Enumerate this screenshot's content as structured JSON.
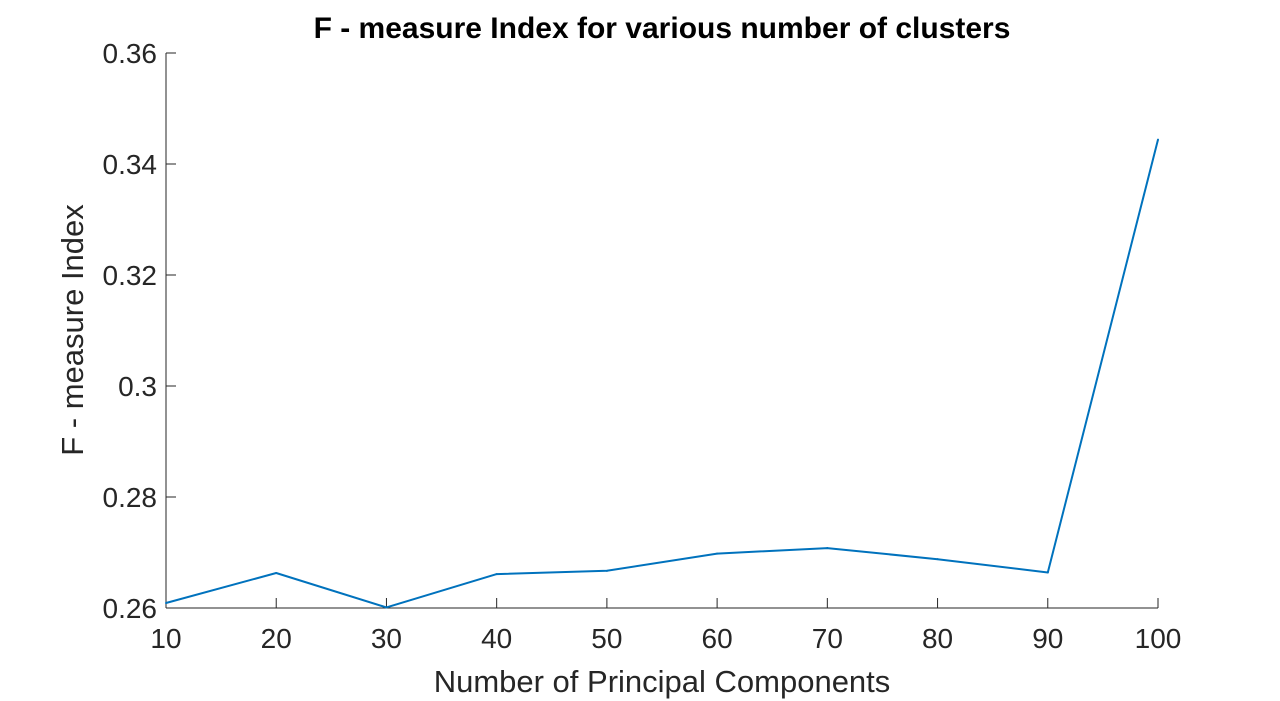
{
  "chart_data": {
    "type": "line",
    "title": "F - measure Index for various number of clusters",
    "xlabel": "Number of Principal Components",
    "ylabel": "F - measure Index",
    "xlim": [
      10,
      100
    ],
    "ylim": [
      0.26,
      0.36
    ],
    "xticks": [
      10,
      20,
      30,
      40,
      50,
      60,
      70,
      80,
      90,
      100
    ],
    "yticks": [
      0.26,
      0.28,
      0.3,
      0.32,
      0.34,
      0.36
    ],
    "ytick_labels": [
      "0.26",
      "0.28",
      "0.3",
      "0.32",
      "0.34",
      "0.36"
    ],
    "grid": false,
    "series": [
      {
        "color": "#0072bd",
        "x": [
          10,
          20,
          30,
          40,
          50,
          60,
          70,
          80,
          90,
          100
        ],
        "y": [
          0.2609,
          0.2663,
          0.2601,
          0.2661,
          0.2667,
          0.2698,
          0.2708,
          0.2688,
          0.2664,
          0.3444
        ]
      }
    ]
  }
}
